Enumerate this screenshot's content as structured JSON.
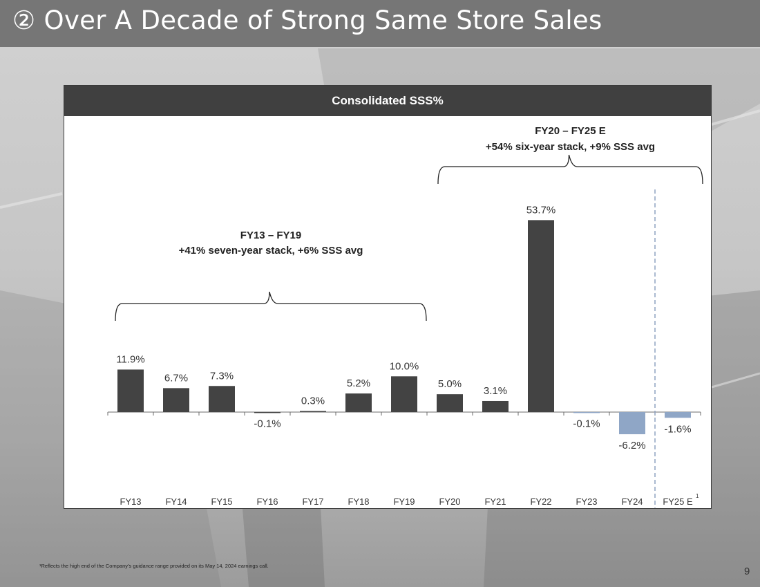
{
  "slide": {
    "title": "② Over A Decade of Strong Same Store Sales",
    "footnote": "¹Reflects the high end of the Company’s guidance range provided on its May 14, 2024 earnings call.",
    "page_number": "9"
  },
  "colors": {
    "actual_bar": "#434343",
    "estimate_bar": "#8fa6c6",
    "divider": "#8ea2c0",
    "header_bg": "#404040"
  },
  "chart_data": {
    "type": "bar",
    "title": "Consolidated SSS%",
    "xlabel": "",
    "ylabel": "",
    "ylim": [
      -14,
      60
    ],
    "grid": false,
    "legend": "none",
    "categories": [
      "FY13",
      "FY14",
      "FY15",
      "FY16",
      "FY17",
      "FY18",
      "FY19",
      "FY20",
      "FY21",
      "FY22",
      "FY23",
      "FY24",
      "FY25 E"
    ],
    "values": [
      11.9,
      6.7,
      7.3,
      -0.1,
      0.3,
      5.2,
      10.0,
      5.0,
      3.1,
      53.7,
      -0.1,
      -6.2,
      -1.6
    ],
    "labels": [
      "11.9%",
      "6.7%",
      "7.3%",
      "-0.1%",
      "0.3%",
      "5.2%",
      "10.0%",
      "5.0%",
      "3.1%",
      "53.7%",
      "-0.1%",
      "-6.2%",
      "-1.6%"
    ],
    "series_style": [
      "dark",
      "dark",
      "dark",
      "dark",
      "dark",
      "dark",
      "dark",
      "dark",
      "dark",
      "dark",
      "light",
      "light",
      "light"
    ],
    "footnote_marker": {
      "category": "FY25 E",
      "text": "1"
    },
    "divider_between": [
      "FY24",
      "FY25 E"
    ],
    "annotations": [
      {
        "id": "fy13-fy19",
        "start": "FY13",
        "end": "FY19",
        "line1": "FY13 – FY19",
        "line2": "+41% seven-year stack, +6% SSS avg"
      },
      {
        "id": "fy20-fy25",
        "start": "FY20",
        "end": "FY25 E",
        "line1": "FY20 – FY25 E",
        "line2": "+54% six-year stack, +9% SSS avg"
      }
    ]
  }
}
